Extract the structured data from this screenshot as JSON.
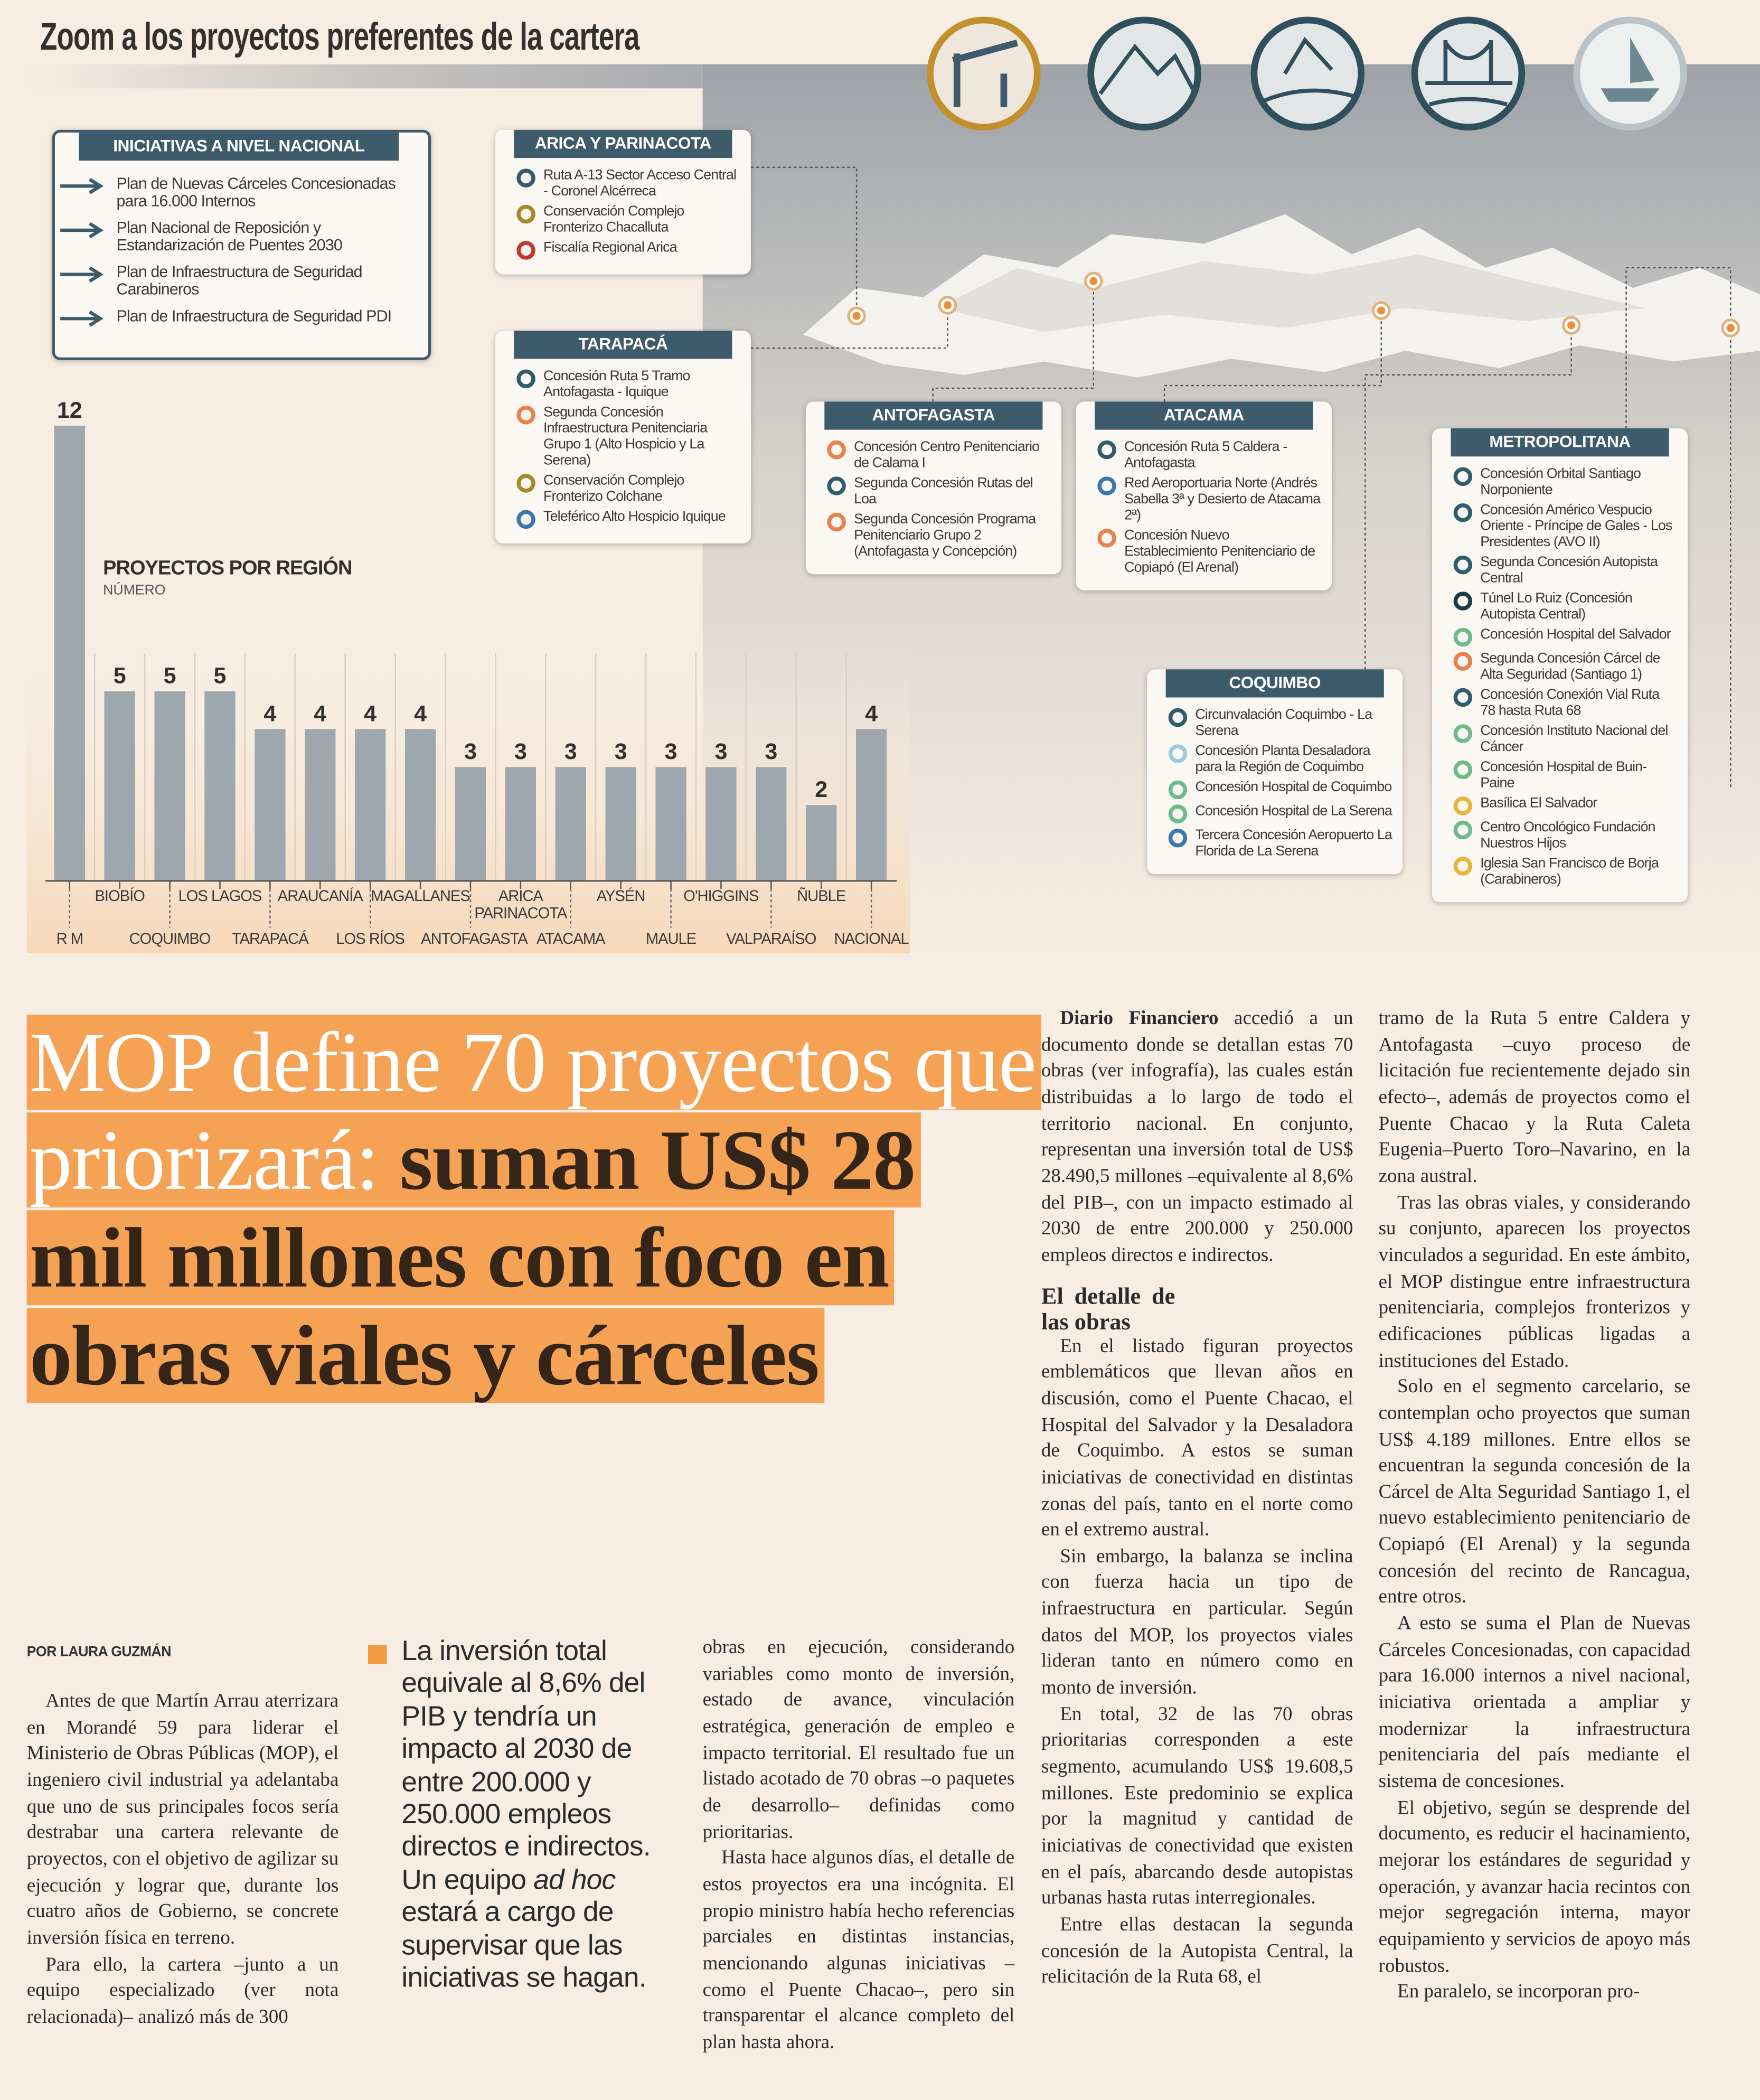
{
  "infographic": {
    "title": "Zoom a los proyectos preferentes de la cartera",
    "national": {
      "title": "INICIATIVAS A NIVEL NACIONAL",
      "items": [
        "Plan de Nuevas Cárceles Concesionadas para 16.000 Internos",
        "Plan Nacional de Reposición y Estandarización de Puentes 2030",
        "Plan de Infraestructura de Seguridad Carabineros",
        "Plan de Infraestructura de Seguridad PDI"
      ]
    },
    "regions": [
      {
        "title": "ARICA Y PARINACOTA",
        "items": [
          {
            "text": "Ruta A-13 Sector Acceso Central - Coronel Alcérreca",
            "color": "#2f5d6e"
          },
          {
            "text": "Conservación Complejo Fronterizo Chacalluta",
            "color": "#a8892a"
          },
          {
            "text": "Fiscalía Regional Arica",
            "color": "#c0392b"
          }
        ]
      },
      {
        "title": "TARAPACÁ",
        "items": [
          {
            "text": "Concesión Ruta 5 Tramo Antofagasta - Iquique",
            "color": "#2f5d6e"
          },
          {
            "text": "Segunda Concesión Infraestructura Penitenciaria Grupo 1 (Alto Hospicio y La Serena)",
            "color": "#e8824a"
          },
          {
            "text": "Conservación Complejo Fronterizo Colchane",
            "color": "#a8892a"
          },
          {
            "text": "Teleférico Alto Hospicio Iquique",
            "color": "#3a76b0"
          }
        ]
      },
      {
        "title": "ANTOFAGASTA",
        "items": [
          {
            "text": "Concesión Centro Penitenciario de Calama I",
            "color": "#e8824a"
          },
          {
            "text": "Segunda Concesión Rutas del Loa",
            "color": "#2f5d6e"
          },
          {
            "text": "Segunda Concesión Programa Penitenciario Grupo 2 (Antofagasta y Concepción)",
            "color": "#e8824a"
          }
        ]
      },
      {
        "title": "ATACAMA",
        "items": [
          {
            "text": "Concesión Ruta 5 Caldera - Antofagasta",
            "color": "#2f5d6e"
          },
          {
            "text": "Red Aeroportuaria Norte (Andrés Sabella 3ª y Desierto de Atacama 2ª)",
            "color": "#3a76b0"
          },
          {
            "text": "Concesión Nuevo Establecimiento Penitenciario de Copiapó (El Arenal)",
            "color": "#e8824a"
          }
        ]
      },
      {
        "title": "COQUIMBO",
        "items": [
          {
            "text": "Circunvalación Coquimbo - La Serena",
            "color": "#2f5d6e"
          },
          {
            "text": "Concesión Planta Desaladora para la Región de Coquimbo",
            "color": "#9cc9dd"
          },
          {
            "text": "Concesión Hospital de Coquimbo",
            "color": "#6dbb8c"
          },
          {
            "text": "Concesión Hospital de La Serena",
            "color": "#6dbb8c"
          },
          {
            "text": "Tercera Concesión Aeropuerto La Florida de La Serena",
            "color": "#3a76b0"
          }
        ]
      },
      {
        "title": "METROPOLITANA",
        "items": [
          {
            "text": "Concesión Orbital Santiago Norponiente",
            "color": "#2f5d6e"
          },
          {
            "text": "Concesión Américo Vespucio Oriente - Príncipe de Gales - Los Presidentes (AVO II)",
            "color": "#2f5d6e"
          },
          {
            "text": "Segunda Concesión Autopista Central",
            "color": "#2f5d6e"
          },
          {
            "text": "Túnel Lo Ruiz (Concesión Autopista Central)",
            "color": "#1e3a45"
          },
          {
            "text": "Concesión Hospital del Salvador",
            "color": "#6dbb8c"
          },
          {
            "text": "Segunda Concesión Cárcel de Alta Seguridad (Santiago 1)",
            "color": "#e8824a"
          },
          {
            "text": "Concesión Conexión Vial Ruta 78 hasta Ruta 68",
            "color": "#2f5d6e"
          },
          {
            "text": "Concesión Instituto Nacional del Cáncer",
            "color": "#6dbb8c"
          },
          {
            "text": "Concesión Hospital de Buin-Paine",
            "color": "#6dbb8c"
          },
          {
            "text": "Basílica El Salvador",
            "color": "#e8b43a"
          },
          {
            "text": "Centro Oncológico Fundación Nuestros Hijos",
            "color": "#6dbb8c"
          },
          {
            "text": "Iglesia San Francisco de Borja (Carabineros)",
            "color": "#e8b43a"
          }
        ]
      }
    ]
  },
  "chart_data": {
    "type": "bar",
    "title": "PROYECTOS POR REGIÓN",
    "subtitle": "NÚMERO",
    "color": "#9fa7ae",
    "categories": [
      "R M",
      "BIOBÍO",
      "COQUIMBO",
      "LOS LAGOS",
      "TARAPACÁ",
      "ARAUCANÍA",
      "LOS RÍOS",
      "MAGALLANES",
      "ANTOFAGASTA",
      "ARICA PARINACOTA",
      "ATACAMA",
      "AYSÉN",
      "MAULE",
      "O'HIGGINS",
      "VALPARAÍSO",
      "ÑUBLE",
      "NACIONAL"
    ],
    "values": [
      12,
      5,
      5,
      5,
      4,
      4,
      4,
      4,
      3,
      3,
      3,
      3,
      3,
      3,
      3,
      2,
      4
    ]
  },
  "article": {
    "headline_light": "MOP define 70 proyectos que priorizará:",
    "headline_dark": "suman US$ 28 mil millones con foco en obras viales y cárceles",
    "byline": "POR LAURA GUZMÁN",
    "highlight": [
      "La inversión total equivale al 8,6% del PIB y tendría un impacto al 2030 de entre 200.000 y 250.000 empleos directos e indirectos. Un equipo ",
      "ad hoc",
      " estará a cargo de supervisar que las iniciativas se hagan."
    ],
    "lead": "Diario Financiero",
    "subhead": "El detalle de las obras",
    "columns": [
      [
        "Antes de que Martín Arrau aterrizara en Morandé 59 para liderar el Ministerio de Obras Públicas (MOP), el ingeniero civil industrial ya adelantaba que uno de sus principales focos sería destrabar una cartera relevante de proyectos, con el objetivo de agilizar su ejecución y lograr que, durante los cuatro años de Gobierno, se concrete inversión física en terreno.",
        "Para ello, la cartera –junto a un equipo especializado (ver nota relacionada)– analizó más de 300"
      ],
      [
        "obras en ejecución, considerando variables como monto de inversión, estado de avance, vinculación estratégica, generación de empleo e impacto territorial. El resultado fue un listado acotado de 70 obras –o paquetes de desarrollo– definidas como prioritarias.",
        "Hasta hace algunos días, el detalle de estos proyectos era una incógnita. El propio ministro había hecho referencias parciales en distintas instancias, mencionando algunas iniciativas –como el Puente Chacao–, pero sin transparentar el alcance completo del plan hasta ahora."
      ],
      [
        " accedió a un documento donde se detallan estas 70 obras (ver infografía), las cuales están distribuidas a lo largo de todo el territorio nacional. En conjunto, representan una inversión total de US$ 28.490,5 millones –equivalente al 8,6% del PIB–, con un impacto estimado al 2030 de entre 200.000 y 250.000 empleos directos e indirectos.",
        "En el listado figuran proyectos emblemáticos que llevan años en discusión, como el Puente Chacao, el Hospital del Salvador y la Desaladora de Coquimbo. A estos se suman iniciativas de conectividad en distintas zonas del país, tanto en el norte como en el extremo austral.",
        "Sin embargo, la balanza se inclina con fuerza hacia un tipo de infraestructura en particular. Según datos del MOP, los proyectos viales lideran tanto en número como en monto de inversión.",
        "En total, 32 de las 70 obras prioritarias corresponden a este segmento, acumulando US$ 19.608,5 millones. Este predominio se explica por la magnitud y cantidad de iniciativas de conectividad que existen en el país, abarcando desde autopistas urbanas hasta rutas interregionales.",
        "Entre ellas destacan la segunda concesión de la Autopista Central, la relicitación de la Ruta 68, el"
      ],
      [
        "tramo de la Ruta 5 entre Caldera y Antofagasta –cuyo proceso de licitación fue recientemente dejado sin efecto–, además de proyectos como el Puente Chacao y la Ruta Caleta Eugenia–Puerto Toro–Navarino, en la zona austral.",
        "Tras las obras viales, y considerando su conjunto, aparecen los proyectos vinculados a seguridad. En este ámbito, el MOP distingue entre infraestructura penitenciaria, complejos fronterizos y edificaciones públicas ligadas a instituciones del Estado.",
        "Solo en el segmento carcelario, se contemplan ocho proyectos que suman US$ 4.189 millones. Entre ellos se encuentran la segunda concesión de la Cárcel de Alta Seguridad Santiago 1, el nuevo establecimiento penitenciario de Copiapó (El Arenal) y la segunda concesión del recinto de Rancagua, entre otros.",
        "A esto se suma el Plan de Nuevas Cárceles Concesionadas, con capacidad para 16.000 internos a nivel nacional, iniciativa orientada a ampliar y modernizar la infraestructura penitenciaria del país mediante el sistema de concesiones.",
        "El objetivo, según se desprende del documento, es reducir el hacinamiento, mejorar los estándares de seguridad y operación, y avanzar hacia recintos con mejor segregación interna, mayor equipamiento y servicios de apoyo más robustos.",
        "En paralelo, se incorporan pro-"
      ]
    ]
  }
}
